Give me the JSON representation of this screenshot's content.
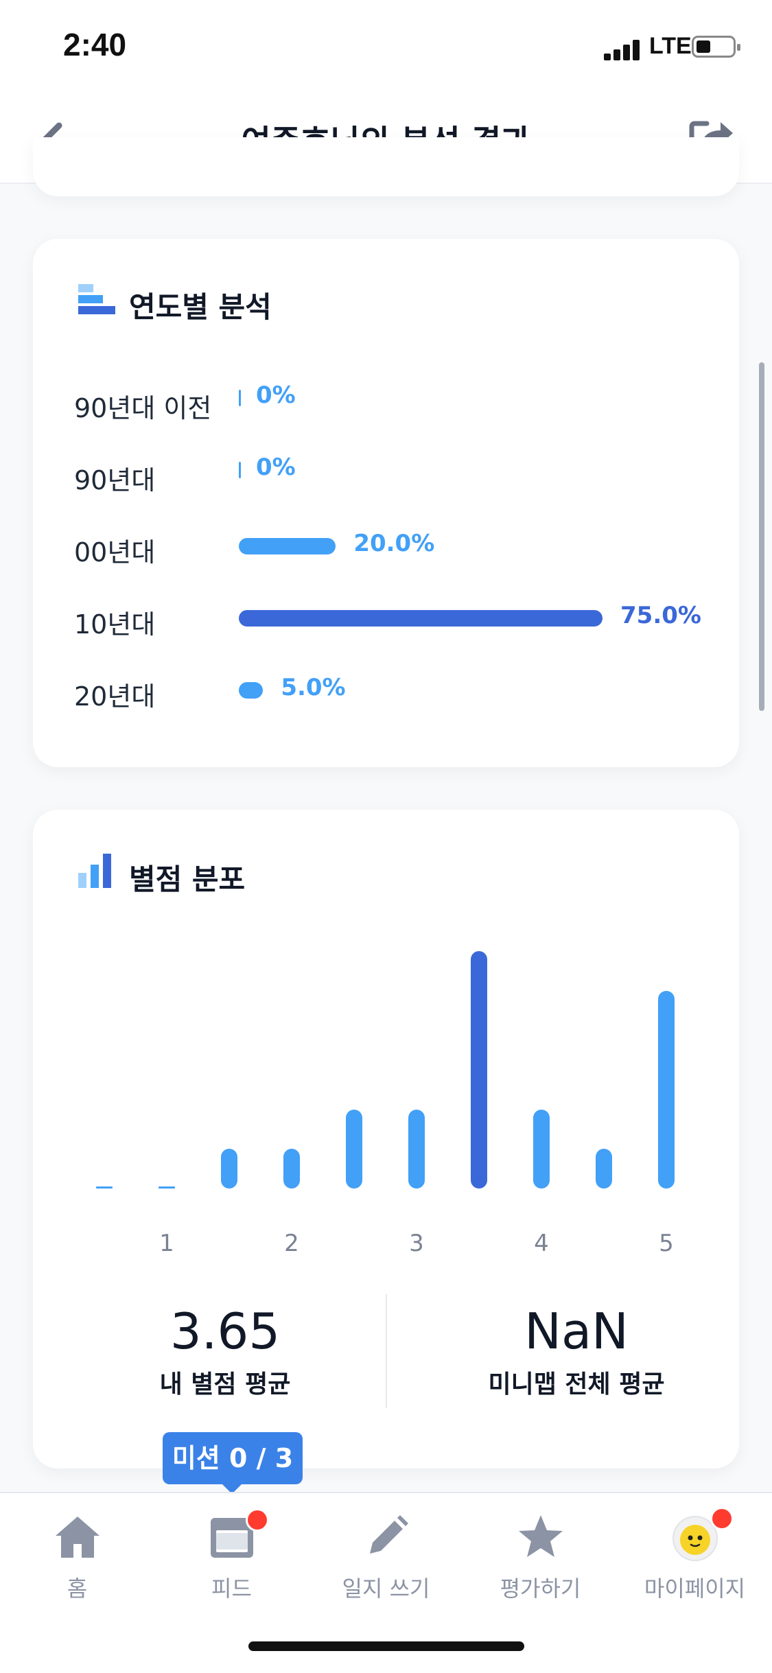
{
  "status_bar": {
    "time": "2:40",
    "network": "LTE"
  },
  "header": {
    "title": "여준호님의 분석 결과"
  },
  "year_analysis": {
    "title": "연도별 분석",
    "rows": [
      {
        "label": "90년대 이전",
        "value": "0%",
        "fraction": 0.0,
        "color": "#42a0f7"
      },
      {
        "label": "90년대",
        "value": "0%",
        "fraction": 0.0,
        "color": "#42a0f7"
      },
      {
        "label": "00년대",
        "value": "20.0%",
        "fraction": 0.2,
        "color": "#42a0f7"
      },
      {
        "label": "10년대",
        "value": "75.0%",
        "fraction": 0.75,
        "color": "#3b68d8"
      },
      {
        "label": "20년대",
        "value": "5.0%",
        "fraction": 0.05,
        "color": "#42a0f7"
      }
    ]
  },
  "rating_distribution": {
    "title": "별점 분포",
    "x_labels": [
      "1",
      "2",
      "3",
      "4",
      "5"
    ],
    "my_average": {
      "value": "3.65",
      "label": "내 별점 평균"
    },
    "overall_average": {
      "value": "NaN",
      "label": "미니맵 전체 평균"
    }
  },
  "chart_data": {
    "type": "bar",
    "title": "별점 분포",
    "categories": [
      "0.5",
      "1",
      "1.5",
      "2",
      "2.5",
      "3",
      "3.5",
      "4",
      "4.5",
      "5"
    ],
    "x_tick_labels": [
      "1",
      "2",
      "3",
      "4",
      "5"
    ],
    "values": [
      0,
      0,
      1,
      1,
      2,
      2,
      6,
      2,
      1,
      5
    ],
    "highlight_category": "3.5",
    "colors": {
      "bar": "#42a0f7",
      "highlight": "#3b68d8"
    }
  },
  "mission_tooltip": {
    "text": "미션 0 / 3"
  },
  "tab_bar": {
    "tabs": [
      {
        "label": "홈",
        "icon": "home-icon"
      },
      {
        "label": "피드",
        "icon": "feed-icon",
        "badge": true
      },
      {
        "label": "일지 쓰기",
        "icon": "pencil-icon"
      },
      {
        "label": "평가하기",
        "icon": "star-icon"
      },
      {
        "label": "마이페이지",
        "icon": "avatar-icon",
        "badge": true
      }
    ]
  },
  "colors": {
    "accent_blue": "#42a0f7",
    "accent_dark_blue": "#3b68d8",
    "tooltip_blue": "#3b82e8",
    "badge_red": "#ff3b30",
    "tab_gray": "#8b93a4"
  }
}
